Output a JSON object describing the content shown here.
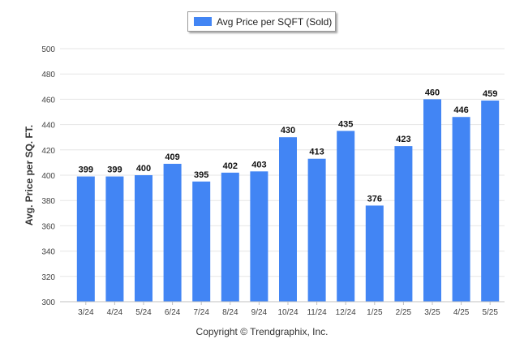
{
  "legend": {
    "label": "Avg Price per SQFT (Sold)"
  },
  "footer": {
    "copyright": "Copyright © Trendgraphix, Inc."
  },
  "chart_data": {
    "type": "bar",
    "ylabel": "Avg. Price per SQ. FT.",
    "xlabel": "",
    "categories": [
      "3/24",
      "4/24",
      "5/24",
      "6/24",
      "7/24",
      "8/24",
      "9/24",
      "10/24",
      "11/24",
      "12/24",
      "1/25",
      "2/25",
      "3/25",
      "4/25",
      "5/25"
    ],
    "series": [
      {
        "name": "Avg Price per SQFT (Sold)",
        "values": [
          399,
          399,
          400,
          409,
          395,
          402,
          403,
          430,
          413,
          435,
          376,
          423,
          460,
          446,
          459
        ]
      }
    ],
    "ylim": [
      300,
      500
    ],
    "yticks": [
      300,
      320,
      340,
      360,
      380,
      400,
      420,
      440,
      460,
      480,
      500
    ],
    "grid": true,
    "legend_position": "top-center",
    "data_labels": true,
    "colors": {
      "bar": "#4285f4",
      "grid": "#e6e6e6",
      "axis": "#c0c0c0"
    }
  }
}
